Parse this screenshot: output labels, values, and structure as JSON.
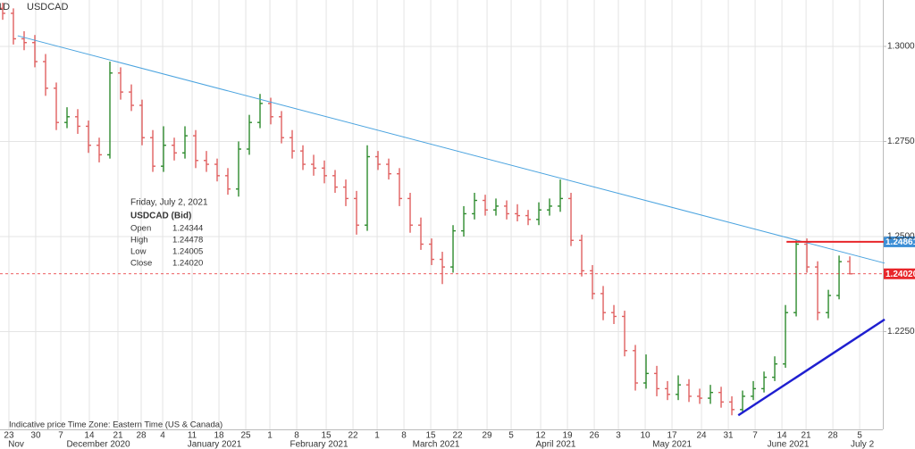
{
  "chart_data": {
    "type": "ohlc",
    "interval": "1D",
    "title": "USDCAD",
    "up_color": "#2e8b2e",
    "down_color": "#e06060",
    "grid": true,
    "xlim": [
      -0.25,
      82.08
    ],
    "ylim": [
      1.1993,
      1.3122
    ],
    "yticks": [
      {
        "value": 1.225,
        "label": "1.22500"
      },
      {
        "value": 1.25,
        "label": "1.25000"
      },
      {
        "value": 1.275,
        "label": "1.27500"
      },
      {
        "value": 1.3,
        "label": "1.30000"
      }
    ],
    "xticks": [
      {
        "value": 0.58,
        "label": "23"
      },
      {
        "value": 3.08,
        "label": "30"
      },
      {
        "value": 5.42,
        "label": "7"
      },
      {
        "value": 8.08,
        "label": "14"
      },
      {
        "value": 10.75,
        "label": "21"
      },
      {
        "value": 12.92,
        "label": "28"
      },
      {
        "value": 14.92,
        "label": "4"
      },
      {
        "value": 17.67,
        "label": "11"
      },
      {
        "value": 20.17,
        "label": "18"
      },
      {
        "value": 22.67,
        "label": "25"
      },
      {
        "value": 24.92,
        "label": "1"
      },
      {
        "value": 27.42,
        "label": "8"
      },
      {
        "value": 30.17,
        "label": "15"
      },
      {
        "value": 32.67,
        "label": "22"
      },
      {
        "value": 34.92,
        "label": "1"
      },
      {
        "value": 37.42,
        "label": "8"
      },
      {
        "value": 39.92,
        "label": "15"
      },
      {
        "value": 42.42,
        "label": "22"
      },
      {
        "value": 45.17,
        "label": "29"
      },
      {
        "value": 47.42,
        "label": "5"
      },
      {
        "value": 50.17,
        "label": "12"
      },
      {
        "value": 52.67,
        "label": "19"
      },
      {
        "value": 55.17,
        "label": "26"
      },
      {
        "value": 57.42,
        "label": "3"
      },
      {
        "value": 59.92,
        "label": "10"
      },
      {
        "value": 62.42,
        "label": "17"
      },
      {
        "value": 65.17,
        "label": "24"
      },
      {
        "value": 67.67,
        "label": "31"
      },
      {
        "value": 70.17,
        "label": "7"
      },
      {
        "value": 72.67,
        "label": "14"
      },
      {
        "value": 74.92,
        "label": "21"
      },
      {
        "value": 77.42,
        "label": "28"
      },
      {
        "value": 79.92,
        "label": "5"
      }
    ],
    "month_labels": [
      {
        "value": 1.25,
        "label": "Nov"
      },
      {
        "value": 8.92,
        "label": "December 2020"
      },
      {
        "value": 19.75,
        "label": "January 2021"
      },
      {
        "value": 29.5,
        "label": "February 2021"
      },
      {
        "value": 40.42,
        "label": "March 2021"
      },
      {
        "value": 51.58,
        "label": "April 2021"
      },
      {
        "value": 62.42,
        "label": "May 2021"
      },
      {
        "value": 73.25,
        "label": "June 2021"
      },
      {
        "value": 80.17,
        "label": "July 2"
      }
    ],
    "open": [
      1.31,
      1.3087,
      1.302,
      1.301,
      1.296,
      1.289,
      1.28,
      1.2815,
      1.279,
      1.274,
      1.2715,
      1.293,
      1.288,
      1.2845,
      1.276,
      1.2685,
      1.274,
      1.272,
      1.2765,
      1.27,
      1.269,
      1.266,
      1.2625,
      1.273,
      1.28,
      1.285,
      1.2815,
      1.276,
      1.2725,
      1.269,
      1.268,
      1.266,
      1.263,
      1.26,
      1.253,
      1.271,
      1.269,
      1.2665,
      1.26,
      1.253,
      1.248,
      1.244,
      1.242,
      1.2515,
      1.256,
      1.2595,
      1.257,
      1.258,
      1.256,
      1.2555,
      1.2545,
      1.257,
      1.258,
      1.26,
      1.249,
      1.241,
      1.235,
      1.23,
      1.229,
      1.22,
      1.2115,
      1.214,
      1.21,
      1.2085,
      1.211,
      1.208,
      1.2075,
      1.209,
      1.2065,
      1.2045,
      1.208,
      1.21,
      1.213,
      1.2165,
      1.23,
      1.248,
      1.242,
      1.23,
      1.2345,
      1.24344
    ],
    "high": [
      1.3115,
      1.31,
      1.304,
      1.303,
      1.298,
      1.2905,
      1.284,
      1.2835,
      1.2805,
      1.276,
      1.296,
      1.2945,
      1.29,
      1.286,
      1.278,
      1.279,
      1.276,
      1.279,
      1.278,
      1.2725,
      1.2705,
      1.268,
      1.275,
      1.282,
      1.2875,
      1.2865,
      1.283,
      1.278,
      1.274,
      1.2715,
      1.27,
      1.2675,
      1.265,
      1.262,
      1.274,
      1.2725,
      1.2705,
      1.268,
      1.2615,
      1.255,
      1.2495,
      1.246,
      1.253,
      1.258,
      1.2615,
      1.261,
      1.26,
      1.2595,
      1.2585,
      1.257,
      1.259,
      1.26,
      1.265,
      1.2615,
      1.2505,
      1.2425,
      1.237,
      1.232,
      1.2305,
      1.2215,
      1.219,
      1.216,
      1.212,
      1.2135,
      1.2125,
      1.21,
      1.211,
      1.2105,
      1.208,
      1.2095,
      1.212,
      1.2145,
      1.2185,
      1.232,
      1.249,
      1.2495,
      1.2435,
      1.236,
      1.245,
      1.24478
    ],
    "low": [
      1.307,
      1.3005,
      1.299,
      1.2945,
      1.287,
      1.278,
      1.2785,
      1.277,
      1.272,
      1.2695,
      1.2705,
      1.286,
      1.283,
      1.274,
      1.267,
      1.267,
      1.27,
      1.2705,
      1.268,
      1.267,
      1.2645,
      1.261,
      1.2605,
      1.2715,
      1.2785,
      1.2795,
      1.2745,
      1.2705,
      1.2675,
      1.266,
      1.264,
      1.2615,
      1.258,
      1.2505,
      1.2515,
      1.2675,
      1.265,
      1.258,
      1.251,
      1.2465,
      1.2425,
      1.2375,
      1.2405,
      1.25,
      1.2545,
      1.2555,
      1.2555,
      1.2545,
      1.254,
      1.253,
      1.253,
      1.2555,
      1.2565,
      1.2475,
      1.2395,
      1.2335,
      1.228,
      1.227,
      1.2185,
      1.2095,
      1.21,
      1.208,
      1.207,
      1.207,
      1.2065,
      1.206,
      1.206,
      1.205,
      1.203,
      1.2035,
      1.207,
      1.209,
      1.212,
      1.2155,
      1.229,
      1.2405,
      1.228,
      1.2285,
      1.2335,
      1.24005
    ],
    "close": [
      1.3087,
      1.302,
      1.301,
      1.296,
      1.289,
      1.28,
      1.2815,
      1.279,
      1.274,
      1.2715,
      1.293,
      1.288,
      1.2845,
      1.276,
      1.2685,
      1.274,
      1.272,
      1.2765,
      1.27,
      1.269,
      1.266,
      1.2625,
      1.273,
      1.28,
      1.285,
      1.2815,
      1.276,
      1.2725,
      1.269,
      1.268,
      1.266,
      1.263,
      1.26,
      1.253,
      1.271,
      1.269,
      1.2665,
      1.26,
      1.253,
      1.248,
      1.244,
      1.242,
      1.2515,
      1.256,
      1.2595,
      1.257,
      1.258,
      1.256,
      1.2555,
      1.2545,
      1.257,
      1.258,
      1.26,
      1.249,
      1.241,
      1.235,
      1.23,
      1.229,
      1.22,
      1.2115,
      1.214,
      1.21,
      1.2085,
      1.211,
      1.208,
      1.2075,
      1.209,
      1.2065,
      1.2045,
      1.208,
      1.21,
      1.213,
      1.2165,
      1.23,
      1.248,
      1.242,
      1.23,
      1.2345,
      1.2434,
      1.2402
    ],
    "trend_lines": [
      {
        "x": [
          1.4,
          82.25
        ],
        "y": [
          1.3028,
          1.243
        ],
        "color": "#4aa3df"
      },
      {
        "x": [
          68.6,
          82.25
        ],
        "y": [
          1.203,
          1.2282
        ],
        "color": "#1f1fd0"
      },
      {
        "x": [
          73.1,
          82.25
        ],
        "y": [
          1.24861,
          1.24861
        ],
        "color": "#e8262a"
      }
    ],
    "price_tags": [
      {
        "value": 1.24861,
        "label": "1.24861",
        "color": "#3d8fd6"
      },
      {
        "value": 1.2402,
        "label": "1.24020",
        "color": "#e8262a"
      }
    ],
    "tooltip": {
      "date": "Friday, July 2, 2021",
      "title": "USDCAD (Bid)",
      "rows": [
        [
          "Open",
          "1.24344"
        ],
        [
          "High",
          "1.24478"
        ],
        [
          "Low",
          "1.24005"
        ],
        [
          "Close",
          "1.24020"
        ]
      ]
    },
    "footer": "Indicative price   Time Zone: Eastern Time (US & Canada)"
  }
}
